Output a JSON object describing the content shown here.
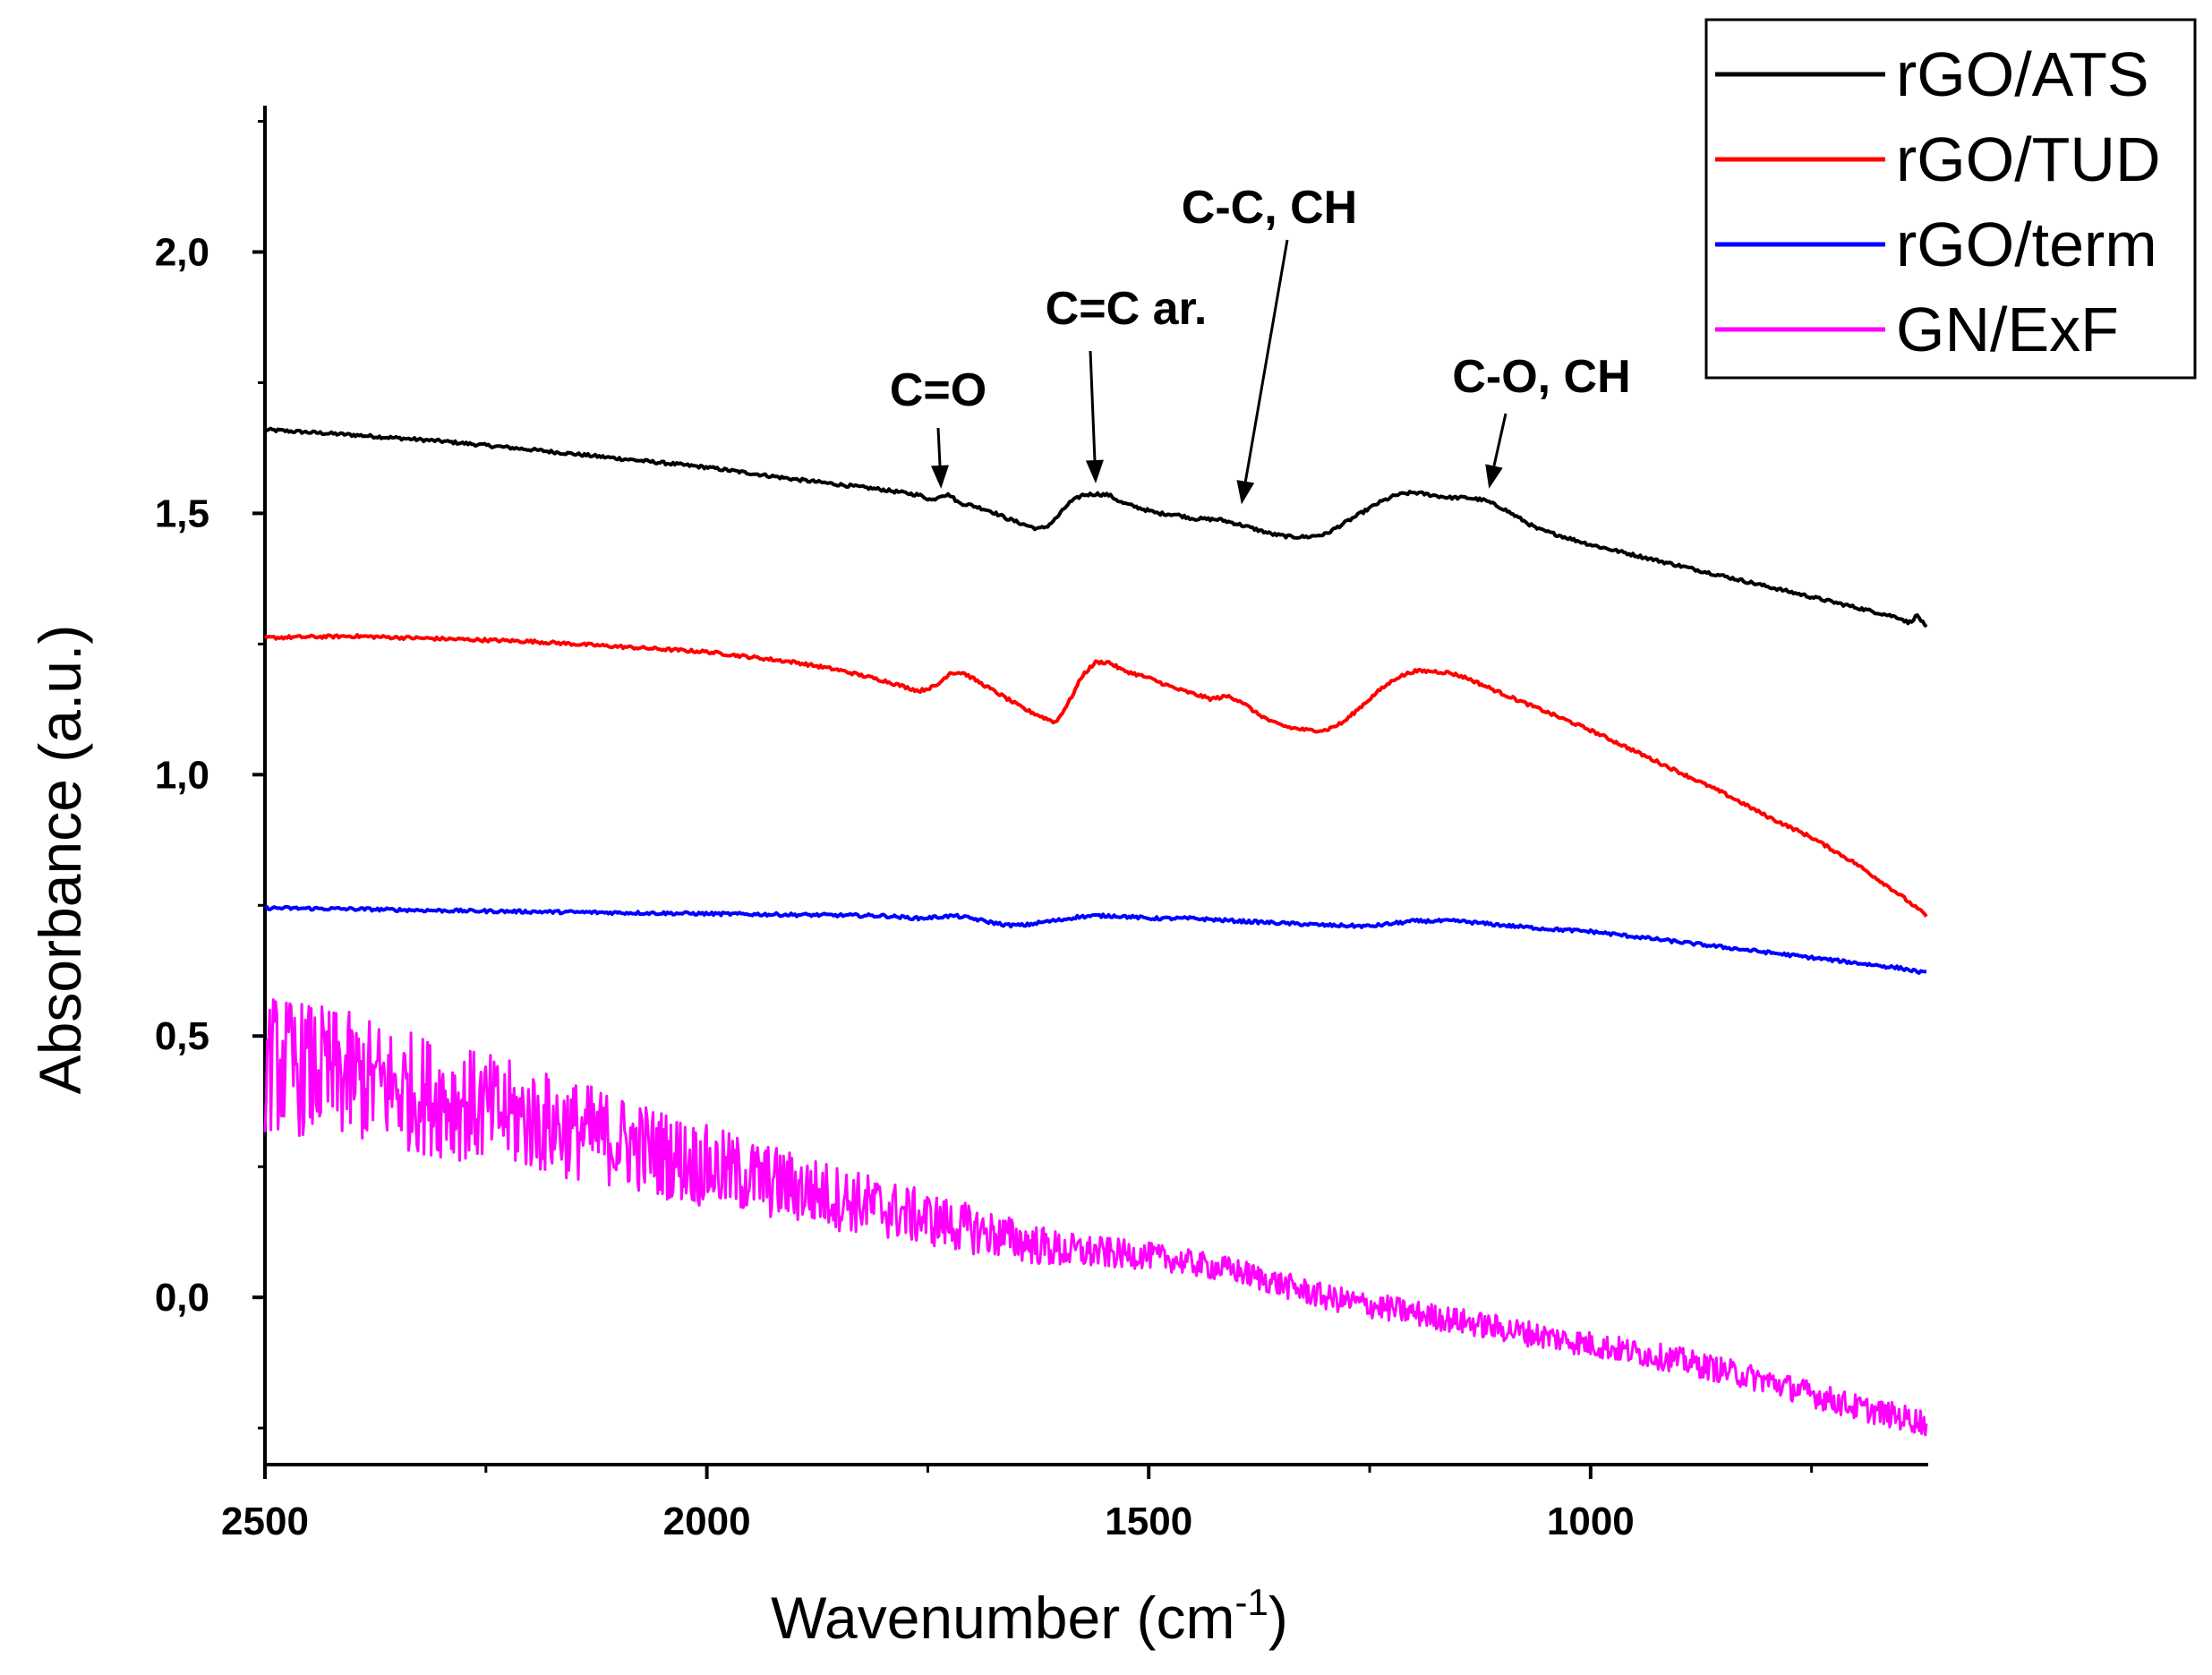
{
  "chart_data": {
    "type": "line",
    "xlabel": "Wavenumber (cm",
    "xlabel_sup": "-1",
    "xlabel_close": ")",
    "ylabel": "Absorbance (a.u.)",
    "xlim": [
      2500,
      620
    ],
    "ylim": [
      -0.32,
      2.28
    ],
    "x_ticks": [
      {
        "value": 2500,
        "label": "2500"
      },
      {
        "value": 2000,
        "label": "2000"
      },
      {
        "value": 1500,
        "label": "1500"
      },
      {
        "value": 1000,
        "label": "1000"
      }
    ],
    "y_ticks": [
      {
        "value": 0.0,
        "label": "0,0"
      },
      {
        "value": 0.5,
        "label": "0,5"
      },
      {
        "value": 1.0,
        "label": "1,0"
      },
      {
        "value": 1.5,
        "label": "1,5"
      },
      {
        "value": 2.0,
        "label": "2,0"
      }
    ],
    "legend_position": "top-right",
    "series": [
      {
        "name": "rGO/ATS",
        "color": "#000000",
        "x": [
          2500,
          2450,
          2400,
          2300,
          2200,
          2100,
          2000,
          1900,
          1800,
          1760,
          1745,
          1735,
          1725,
          1715,
          1700,
          1680,
          1660,
          1640,
          1625,
          1615,
          1605,
          1590,
          1575,
          1560,
          1545,
          1530,
          1510,
          1490,
          1470,
          1450,
          1420,
          1400,
          1380,
          1360,
          1340,
          1320,
          1300,
          1280,
          1260,
          1240,
          1220,
          1200,
          1180,
          1160,
          1140,
          1120,
          1100,
          1080,
          1060,
          1040,
          1000,
          950,
          900,
          850,
          800,
          750,
          700,
          650,
          640,
          630,
          620
        ],
        "y": [
          1.66,
          1.655,
          1.65,
          1.638,
          1.622,
          1.605,
          1.588,
          1.565,
          1.545,
          1.535,
          1.525,
          1.535,
          1.535,
          1.52,
          1.515,
          1.505,
          1.49,
          1.478,
          1.47,
          1.475,
          1.49,
          1.52,
          1.535,
          1.537,
          1.535,
          1.52,
          1.51,
          1.5,
          1.498,
          1.49,
          1.488,
          1.48,
          1.47,
          1.46,
          1.455,
          1.455,
          1.46,
          1.48,
          1.5,
          1.52,
          1.535,
          1.54,
          1.535,
          1.53,
          1.53,
          1.525,
          1.51,
          1.49,
          1.47,
          1.46,
          1.44,
          1.42,
          1.4,
          1.38,
          1.36,
          1.34,
          1.32,
          1.3,
          1.29,
          1.305,
          1.28
        ]
      },
      {
        "name": "rGO/TUD",
        "color": "#ff0000",
        "x": [
          2500,
          2400,
          2300,
          2200,
          2100,
          2000,
          1950,
          1900,
          1850,
          1800,
          1760,
          1740,
          1725,
          1710,
          1695,
          1680,
          1660,
          1640,
          1620,
          1605,
          1590,
          1575,
          1560,
          1545,
          1530,
          1500,
          1470,
          1450,
          1430,
          1410,
          1395,
          1380,
          1360,
          1340,
          1320,
          1300,
          1280,
          1260,
          1240,
          1220,
          1200,
          1180,
          1160,
          1140,
          1120,
          1100,
          1050,
          1000,
          950,
          900,
          850,
          800,
          750,
          700,
          650,
          620
        ],
        "y": [
          1.262,
          1.265,
          1.26,
          1.255,
          1.245,
          1.235,
          1.225,
          1.215,
          1.2,
          1.18,
          1.16,
          1.17,
          1.195,
          1.195,
          1.18,
          1.165,
          1.145,
          1.125,
          1.11,
          1.1,
          1.14,
          1.19,
          1.215,
          1.215,
          1.2,
          1.185,
          1.165,
          1.155,
          1.145,
          1.15,
          1.14,
          1.12,
          1.1,
          1.09,
          1.085,
          1.085,
          1.1,
          1.13,
          1.16,
          1.185,
          1.198,
          1.198,
          1.195,
          1.185,
          1.17,
          1.155,
          1.12,
          1.085,
          1.045,
          1.005,
          0.965,
          0.92,
          0.88,
          0.83,
          0.77,
          0.73
        ]
      },
      {
        "name": "rGO/term",
        "color": "#0000ff",
        "x": [
          2500,
          2400,
          2300,
          2200,
          2100,
          2000,
          1900,
          1800,
          1760,
          1720,
          1700,
          1680,
          1660,
          1640,
          1620,
          1600,
          1580,
          1560,
          1540,
          1520,
          1500,
          1450,
          1400,
          1350,
          1300,
          1250,
          1200,
          1150,
          1100,
          1050,
          1000,
          950,
          900,
          850,
          800,
          750,
          700,
          650,
          620
        ],
        "y": [
          0.745,
          0.743,
          0.74,
          0.738,
          0.736,
          0.734,
          0.732,
          0.73,
          0.725,
          0.73,
          0.725,
          0.718,
          0.712,
          0.712,
          0.718,
          0.722,
          0.728,
          0.73,
          0.73,
          0.728,
          0.725,
          0.725,
          0.72,
          0.716,
          0.712,
          0.71,
          0.72,
          0.72,
          0.712,
          0.705,
          0.7,
          0.69,
          0.68,
          0.67,
          0.66,
          0.65,
          0.64,
          0.63,
          0.62
        ]
      },
      {
        "name": "GN/ExF",
        "color": "#ff00ff",
        "noisy": true,
        "x": [
          2500,
          2400,
          2300,
          2200,
          2100,
          2000,
          1900,
          1800,
          1700,
          1600,
          1500,
          1400,
          1300,
          1200,
          1100,
          1000,
          900,
          800,
          700,
          620
        ],
        "y": [
          0.45,
          0.42,
          0.38,
          0.34,
          0.3,
          0.25,
          0.21,
          0.17,
          0.13,
          0.09,
          0.08,
          0.05,
          0.0,
          -0.03,
          -0.06,
          -0.09,
          -0.12,
          -0.16,
          -0.21,
          -0.24
        ]
      }
    ],
    "annotations": [
      {
        "text": "C=O",
        "arrow_tip_x": 1735,
        "arrow_tip_y": 1.53
      },
      {
        "text": "C=C ar.",
        "arrow_tip_x": 1560,
        "arrow_tip_y": 1.54
      },
      {
        "text": "C-C, CH",
        "arrow_tip_x": 1395,
        "arrow_tip_y": 1.5
      },
      {
        "text": "C-O, CH",
        "arrow_tip_x": 1115,
        "arrow_tip_y": 1.53
      }
    ]
  }
}
